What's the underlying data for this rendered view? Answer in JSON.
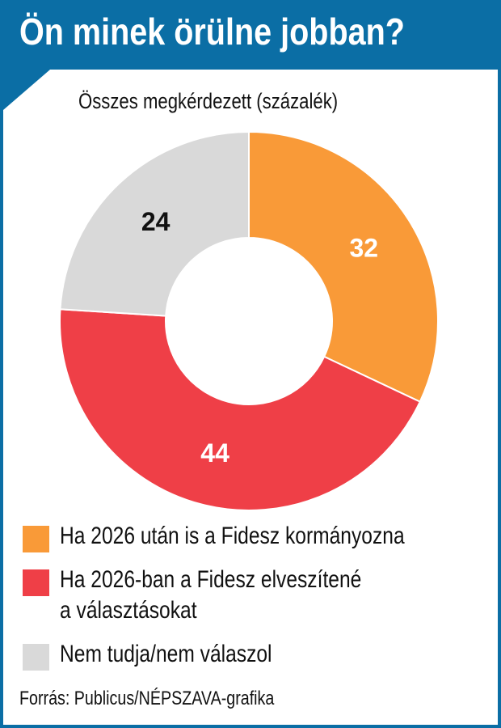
{
  "header": {
    "title": "Ön minek örülne jobban?",
    "subtitle": "Összes megkérdezett (százalék)"
  },
  "chart_data": {
    "type": "pie",
    "variant": "donut",
    "title": "Ön minek örülne jobban?",
    "subtitle": "Összes megkérdezett (százalék)",
    "categories": [
      "Ha 2026 után is a Fidesz kormányozna",
      "Ha 2026-ban a Fidesz elveszítené a választásokat",
      "Nem tudja/nem válaszol"
    ],
    "values": [
      32,
      44,
      24
    ],
    "labels": [
      "32",
      "44",
      "24"
    ],
    "colors": [
      "#f99a38",
      "#ef3f47",
      "#d9d9d9"
    ],
    "label_colors": [
      "#ffffff",
      "#ffffff",
      "#111111"
    ],
    "legend_position": "bottom"
  },
  "legend": {
    "items": [
      {
        "lines": [
          "Ha 2026 után is a Fidesz kormányozna"
        ]
      },
      {
        "lines": [
          "Ha 2026-ban a Fidesz elveszítené",
          "a választásokat"
        ]
      },
      {
        "lines": [
          "Nem tudja/nem válaszol"
        ]
      }
    ]
  },
  "source": "Forrás: Publicus/NÉPSZAVA-grafika"
}
